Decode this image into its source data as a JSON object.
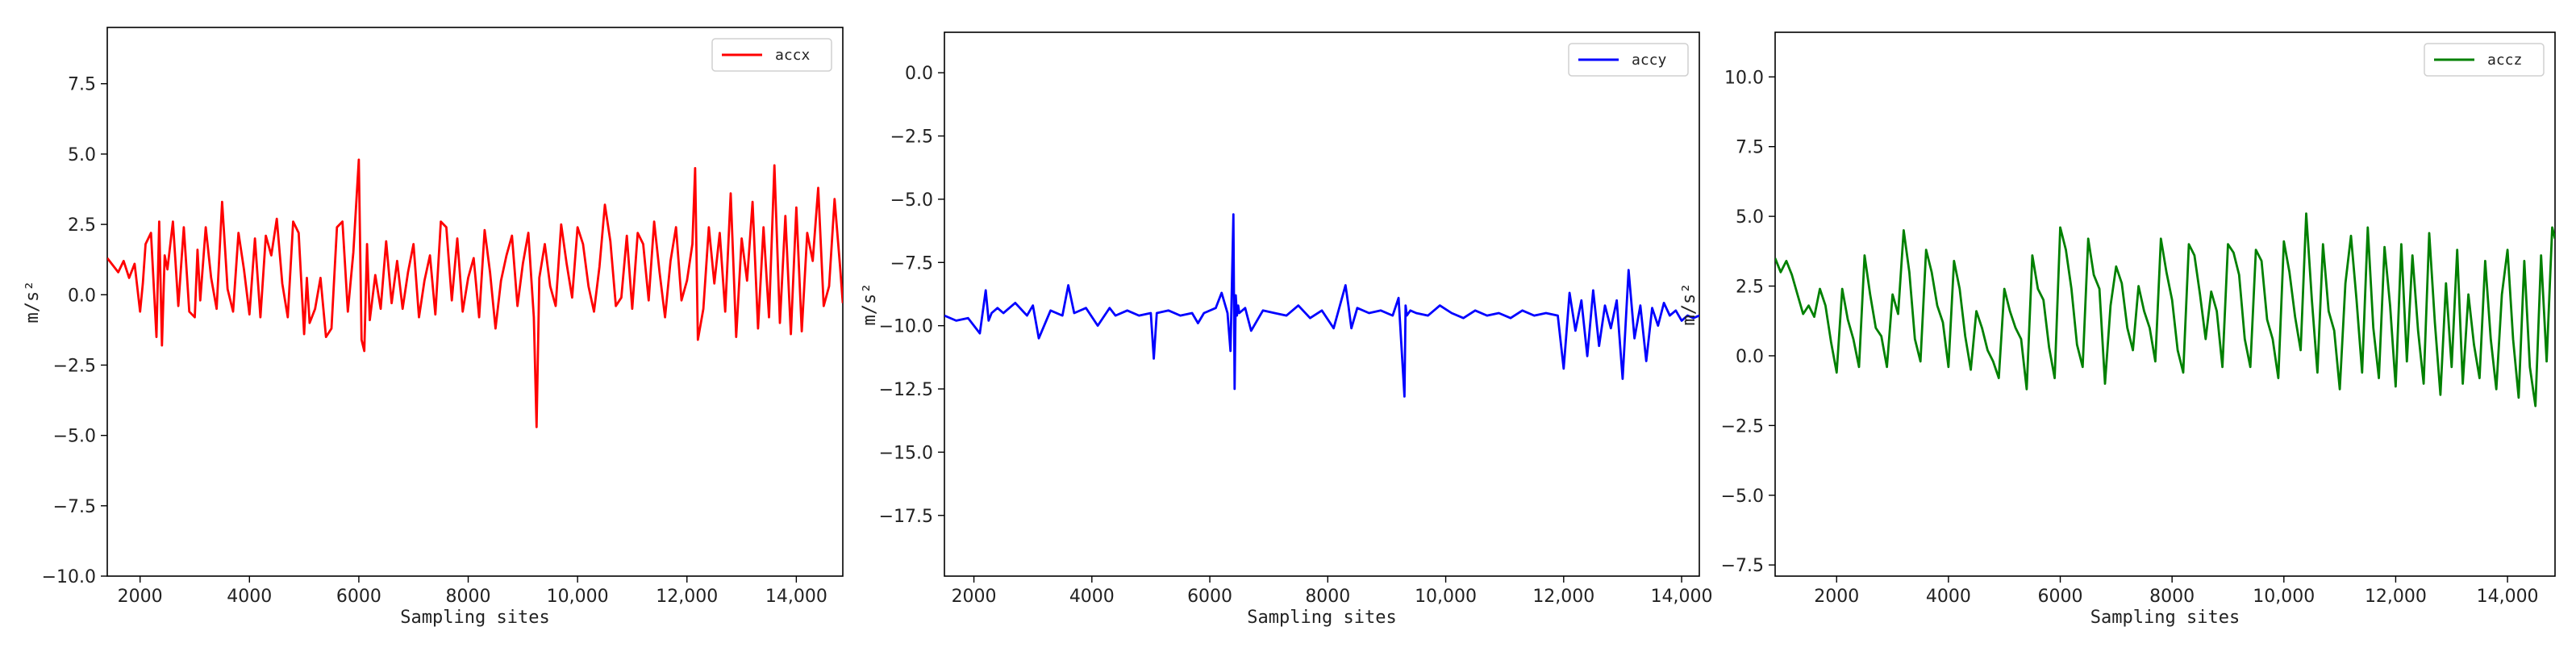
{
  "chart_data": [
    {
      "type": "line",
      "xlabel": "Sampling sites",
      "ylabel": "m/s²",
      "xlim": [
        1400,
        14850
      ],
      "ylim": [
        -10.0,
        9.5
      ],
      "xticks": [
        2000,
        4000,
        6000,
        8000,
        10000,
        12000,
        14000
      ],
      "xtick_labels": [
        "2000",
        "4000",
        "6000",
        "8000",
        "10,000",
        "12,000",
        "14,000"
      ],
      "yticks": [
        7.5,
        5.0,
        2.5,
        0.0,
        -2.5,
        -5.0,
        -7.5,
        -10.0
      ],
      "ytick_labels": [
        "7.5",
        "5.0",
        "2.5",
        "0.0",
        "−2.5",
        "−5.0",
        "−7.5",
        "−10.0"
      ],
      "grid": false,
      "legend_position": "top-right",
      "series": [
        {
          "name": "accx",
          "color": "#ff0000",
          "x": [
            1400,
            1600,
            1700,
            1800,
            1900,
            2000,
            2050,
            2100,
            2200,
            2300,
            2350,
            2400,
            2450,
            2500,
            2600,
            2700,
            2800,
            2900,
            3000,
            3050,
            3100,
            3200,
            3300,
            3400,
            3500,
            3600,
            3700,
            3800,
            3900,
            4000,
            4100,
            4200,
            4300,
            4400,
            4500,
            4600,
            4700,
            4800,
            4900,
            5000,
            5050,
            5100,
            5200,
            5300,
            5400,
            5500,
            5600,
            5700,
            5800,
            5900,
            6000,
            6050,
            6100,
            6150,
            6200,
            6300,
            6400,
            6500,
            6600,
            6700,
            6800,
            6900,
            7000,
            7100,
            7200,
            7300,
            7400,
            7500,
            7600,
            7700,
            7800,
            7900,
            8000,
            8100,
            8200,
            8300,
            8400,
            8500,
            8600,
            8700,
            8800,
            8900,
            9000,
            9100,
            9200,
            9250,
            9300,
            9400,
            9500,
            9600,
            9700,
            9800,
            9900,
            10000,
            10100,
            10200,
            10300,
            10400,
            10500,
            10600,
            10700,
            10800,
            10900,
            11000,
            11100,
            11200,
            11300,
            11400,
            11500,
            11600,
            11700,
            11800,
            11900,
            12000,
            12100,
            12150,
            12200,
            12300,
            12400,
            12500,
            12600,
            12700,
            12800,
            12900,
            13000,
            13100,
            13200,
            13300,
            13400,
            13500,
            13600,
            13700,
            13800,
            13900,
            14000,
            14100,
            14200,
            14300,
            14400,
            14500,
            14600,
            14700,
            14800,
            14850
          ],
          "values": [
            1.3,
            0.8,
            1.2,
            0.6,
            1.1,
            -0.6,
            0.4,
            1.8,
            2.2,
            -1.5,
            2.6,
            -1.8,
            1.4,
            0.9,
            2.6,
            -0.4,
            2.4,
            -0.6,
            -0.8,
            1.6,
            -0.2,
            2.4,
            0.6,
            -0.5,
            3.3,
            0.2,
            -0.6,
            2.2,
            0.9,
            -0.7,
            2.0,
            -0.8,
            2.1,
            1.4,
            2.7,
            0.4,
            -0.8,
            2.6,
            2.2,
            -1.4,
            0.6,
            -1.0,
            -0.5,
            0.6,
            -1.5,
            -1.2,
            2.4,
            2.6,
            -0.6,
            1.5,
            4.8,
            -1.6,
            -2.0,
            1.8,
            -0.9,
            0.7,
            -0.5,
            1.9,
            -0.3,
            1.2,
            -0.5,
            0.8,
            1.8,
            -0.8,
            0.5,
            1.4,
            -0.7,
            2.6,
            2.4,
            -0.2,
            2.0,
            -0.6,
            0.6,
            1.3,
            -0.8,
            2.3,
            0.8,
            -1.2,
            0.5,
            1.4,
            2.1,
            -0.4,
            1.1,
            2.2,
            -0.8,
            -4.7,
            0.6,
            1.8,
            0.3,
            -0.4,
            2.5,
            1.1,
            -0.1,
            2.4,
            1.8,
            0.3,
            -0.6,
            1.0,
            3.2,
            1.9,
            -0.4,
            -0.1,
            2.1,
            -0.5,
            2.2,
            1.8,
            -0.2,
            2.6,
            0.8,
            -0.8,
            1.2,
            2.4,
            -0.2,
            0.5,
            1.8,
            4.5,
            -1.6,
            -0.5,
            2.4,
            0.4,
            2.2,
            -0.6,
            3.6,
            -1.5,
            2.0,
            0.5,
            3.3,
            -1.2,
            2.4,
            -0.8,
            4.6,
            -1.0,
            2.8,
            -1.4,
            3.1,
            -1.3,
            2.2,
            1.2,
            3.8,
            -0.4,
            0.3,
            3.4,
            1.0,
            -0.3
          ]
        }
      ]
    },
    {
      "type": "line",
      "xlabel": "Sampling sites",
      "ylabel": "m/s²",
      "xlim": [
        1500,
        14300
      ],
      "ylim": [
        -19.9,
        1.6
      ],
      "xticks": [
        2000,
        4000,
        6000,
        8000,
        10000,
        12000,
        14000
      ],
      "xtick_labels": [
        "2000",
        "4000",
        "6000",
        "8000",
        "10,000",
        "12,000",
        "14,000"
      ],
      "yticks": [
        0.0,
        -2.5,
        -5.0,
        -7.5,
        -10.0,
        -12.5,
        -15.0,
        -17.5
      ],
      "ytick_labels": [
        "0.0",
        "−2.5",
        "−5.0",
        "−7.5",
        "−10.0",
        "−12.5",
        "−15.0",
        "−17.5"
      ],
      "grid": false,
      "legend_position": "top-right",
      "series": [
        {
          "name": "accy",
          "color": "#0000ff",
          "x": [
            1500,
            1700,
            1900,
            2100,
            2200,
            2250,
            2300,
            2400,
            2500,
            2700,
            2900,
            3000,
            3100,
            3300,
            3500,
            3600,
            3700,
            3900,
            4100,
            4300,
            4400,
            4600,
            4800,
            5000,
            5050,
            5100,
            5300,
            5500,
            5700,
            5800,
            5900,
            6100,
            6200,
            6300,
            6350,
            6400,
            6420,
            6440,
            6460,
            6480,
            6500,
            6550,
            6600,
            6700,
            6900,
            7100,
            7300,
            7500,
            7700,
            7900,
            8100,
            8300,
            8350,
            8400,
            8500,
            8700,
            8900,
            9100,
            9200,
            9300,
            9320,
            9340,
            9400,
            9500,
            9700,
            9900,
            10100,
            10300,
            10500,
            10700,
            10900,
            11100,
            11300,
            11500,
            11700,
            11900,
            12000,
            12100,
            12200,
            12300,
            12400,
            12500,
            12600,
            12700,
            12800,
            12900,
            13000,
            13100,
            13200,
            13300,
            13400,
            13500,
            13600,
            13700,
            13800,
            13900,
            14000,
            14100,
            14200,
            14300
          ],
          "values": [
            -9.6,
            -9.8,
            -9.7,
            -10.3,
            -8.6,
            -9.8,
            -9.5,
            -9.3,
            -9.5,
            -9.1,
            -9.6,
            -9.2,
            -10.5,
            -9.4,
            -9.6,
            -8.4,
            -9.5,
            -9.3,
            -10.0,
            -9.3,
            -9.6,
            -9.4,
            -9.6,
            -9.5,
            -11.3,
            -9.5,
            -9.4,
            -9.6,
            -9.5,
            -9.9,
            -9.5,
            -9.3,
            -8.7,
            -9.5,
            -11.0,
            -5.6,
            -12.5,
            -8.8,
            -9.6,
            -9.2,
            -9.5,
            -9.4,
            -9.3,
            -10.2,
            -9.4,
            -9.5,
            -9.6,
            -9.2,
            -9.7,
            -9.4,
            -10.1,
            -8.4,
            -9.2,
            -10.1,
            -9.3,
            -9.5,
            -9.4,
            -9.6,
            -8.9,
            -12.8,
            -9.2,
            -9.6,
            -9.4,
            -9.5,
            -9.6,
            -9.2,
            -9.5,
            -9.7,
            -9.4,
            -9.6,
            -9.5,
            -9.7,
            -9.4,
            -9.6,
            -9.5,
            -9.6,
            -11.7,
            -8.7,
            -10.2,
            -9.0,
            -11.2,
            -8.6,
            -10.8,
            -9.2,
            -10.1,
            -9.0,
            -12.1,
            -7.8,
            -10.5,
            -9.2,
            -11.4,
            -9.3,
            -10.0,
            -9.1,
            -9.6,
            -9.4,
            -9.8,
            -9.6,
            -9.7,
            -9.6
          ]
        }
      ]
    },
    {
      "type": "line",
      "xlabel": "Sampling sites",
      "ylabel": "m/s²",
      "xlim": [
        900,
        14850
      ],
      "ylim": [
        -7.9,
        11.6
      ],
      "xticks": [
        2000,
        4000,
        6000,
        8000,
        10000,
        12000,
        14000
      ],
      "xtick_labels": [
        "2000",
        "4000",
        "6000",
        "8000",
        "10,000",
        "12,000",
        "14,000"
      ],
      "yticks": [
        10.0,
        7.5,
        5.0,
        2.5,
        0.0,
        -2.5,
        -5.0,
        -7.5
      ],
      "ytick_labels": [
        "10.0",
        "7.5",
        "5.0",
        "2.5",
        "0.0",
        "−2.5",
        "−5.0",
        "−7.5"
      ],
      "grid": false,
      "legend_position": "top-right",
      "series": [
        {
          "name": "accz",
          "color": "#008000",
          "x": [
            900,
            1000,
            1100,
            1200,
            1300,
            1400,
            1500,
            1600,
            1700,
            1800,
            1900,
            2000,
            2100,
            2200,
            2300,
            2400,
            2500,
            2600,
            2700,
            2800,
            2900,
            3000,
            3100,
            3200,
            3300,
            3400,
            3500,
            3600,
            3700,
            3800,
            3900,
            4000,
            4100,
            4200,
            4300,
            4400,
            4500,
            4600,
            4700,
            4800,
            4900,
            5000,
            5100,
            5200,
            5300,
            5400,
            5500,
            5600,
            5700,
            5800,
            5900,
            6000,
            6100,
            6200,
            6300,
            6400,
            6500,
            6600,
            6700,
            6800,
            6900,
            7000,
            7100,
            7200,
            7300,
            7400,
            7500,
            7600,
            7700,
            7800,
            7900,
            8000,
            8100,
            8200,
            8300,
            8400,
            8500,
            8600,
            8700,
            8800,
            8900,
            9000,
            9100,
            9200,
            9300,
            9400,
            9500,
            9600,
            9700,
            9800,
            9900,
            10000,
            10100,
            10200,
            10300,
            10400,
            10500,
            10600,
            10700,
            10800,
            10900,
            11000,
            11100,
            11200,
            11300,
            11400,
            11500,
            11600,
            11700,
            11800,
            11900,
            12000,
            12100,
            12200,
            12300,
            12400,
            12500,
            12600,
            12700,
            12800,
            12900,
            13000,
            13100,
            13200,
            13300,
            13400,
            13500,
            13600,
            13700,
            13800,
            13900,
            14000,
            14100,
            14200,
            14300,
            14400,
            14500,
            14600,
            14700,
            14800,
            14850
          ],
          "values": [
            3.5,
            3.0,
            3.4,
            2.9,
            2.2,
            1.5,
            1.8,
            1.4,
            2.4,
            1.8,
            0.5,
            -0.6,
            2.4,
            1.3,
            0.6,
            -0.4,
            3.6,
            2.2,
            1.0,
            0.7,
            -0.4,
            2.2,
            1.5,
            4.5,
            3.0,
            0.6,
            -0.2,
            3.8,
            3.0,
            1.8,
            1.2,
            -0.4,
            3.4,
            2.4,
            0.7,
            -0.5,
            1.6,
            1.0,
            0.2,
            -0.2,
            -0.8,
            2.4,
            1.6,
            1.0,
            0.6,
            -1.2,
            3.6,
            2.4,
            2.0,
            0.3,
            -0.8,
            4.6,
            3.8,
            2.4,
            0.4,
            -0.4,
            4.2,
            2.9,
            2.4,
            -1.0,
            1.8,
            3.2,
            2.6,
            1.0,
            0.2,
            2.5,
            1.6,
            1.0,
            -0.2,
            4.2,
            3.0,
            2.0,
            0.2,
            -0.6,
            4.0,
            3.6,
            2.2,
            0.6,
            2.3,
            1.6,
            -0.4,
            4.0,
            3.7,
            2.9,
            0.6,
            -0.4,
            3.8,
            3.4,
            1.3,
            0.6,
            -0.8,
            4.1,
            3.0,
            1.4,
            0.2,
            5.1,
            2.0,
            -0.6,
            4.0,
            1.6,
            0.9,
            -1.2,
            2.6,
            4.3,
            2.0,
            -0.6,
            4.6,
            1.0,
            -0.8,
            3.9,
            1.8,
            -1.1,
            4.0,
            -0.2,
            3.6,
            0.9,
            -1.0,
            4.4,
            1.2,
            -1.4,
            2.6,
            -0.4,
            3.8,
            -1.0,
            2.2,
            0.4,
            -0.8,
            3.4,
            0.6,
            -1.2,
            2.2,
            3.8,
            0.6,
            -1.5,
            3.4,
            -0.4,
            -1.8,
            3.6,
            -0.2,
            4.6,
            4.2
          ]
        }
      ]
    }
  ]
}
